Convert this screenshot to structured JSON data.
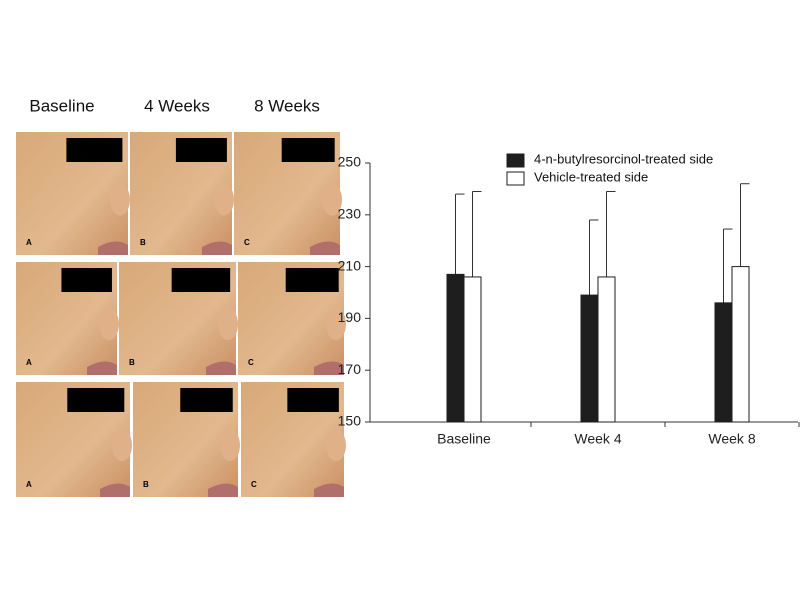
{
  "photo_panel": {
    "column_headers": [
      "Baseline",
      "4 Weeks",
      "8 Weeks"
    ],
    "rows": [
      [
        "A",
        "B",
        "C"
      ],
      [
        "A",
        "B",
        "C"
      ],
      [
        "A",
        "B",
        "C"
      ]
    ]
  },
  "chart_data": {
    "type": "bar",
    "categories": [
      "Baseline",
      "Week 4",
      "Week 8"
    ],
    "series": [
      {
        "name": "4-n-butylresorcinol-treated side",
        "color": "#1e1e1e",
        "values": [
          207,
          199,
          196
        ],
        "errors": [
          31,
          29,
          28.5
        ]
      },
      {
        "name": "Vehicle-treated side",
        "color": "#ffffff",
        "values": [
          206,
          206,
          210
        ],
        "errors": [
          33,
          33,
          32
        ]
      }
    ],
    "ylim": [
      150,
      250
    ],
    "yticks": [
      150,
      170,
      190,
      210,
      230,
      250
    ],
    "grid": false,
    "legend": "top"
  }
}
